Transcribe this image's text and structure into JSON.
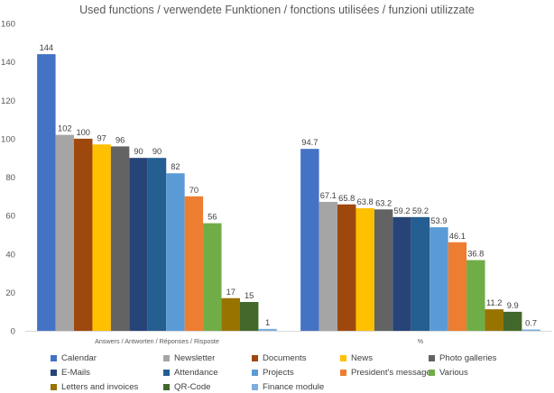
{
  "chart_data": {
    "type": "bar",
    "title": "Used functions / verwendete Funktionen / fonctions utilisées / funzioni utilizzate",
    "xlabel": "",
    "ylabel": "",
    "ylim": [
      0,
      160
    ],
    "yticks": [
      "0",
      "20",
      "40",
      "60",
      "80",
      "100",
      "120",
      "140",
      "160"
    ],
    "grid": false,
    "legend_position": "bottom",
    "data_labels": true,
    "categories": [
      "Answers / Antworten / Réponses / Risposte",
      "%"
    ],
    "series": [
      {
        "name": "Calendar",
        "color": "#4472C4",
        "values": [
          144,
          94.7
        ],
        "labels": [
          "144",
          "94.7"
        ]
      },
      {
        "name": "Newsletter",
        "color": "#A5A5A5",
        "values": [
          102,
          67.1
        ],
        "labels": [
          "102",
          "67.1"
        ]
      },
      {
        "name": "Documents",
        "color": "#9E480E",
        "values": [
          100,
          65.8
        ],
        "labels": [
          "100",
          "65.8"
        ]
      },
      {
        "name": "News",
        "color": "#FFC000",
        "values": [
          97,
          63.8
        ],
        "labels": [
          "97",
          "63.8"
        ]
      },
      {
        "name": "Photo galleries",
        "color": "#636363",
        "values": [
          96,
          63.2
        ],
        "labels": [
          "96",
          "63.2"
        ]
      },
      {
        "name": "E-Mails",
        "color": "#264478",
        "values": [
          90,
          59.2
        ],
        "labels": [
          "90",
          "59.2"
        ]
      },
      {
        "name": "Attendance",
        "color": "#255E91",
        "values": [
          90,
          59.2
        ],
        "labels": [
          "90",
          "59.2"
        ]
      },
      {
        "name": "Projects",
        "color": "#5B9BD5",
        "values": [
          82,
          53.9
        ],
        "labels": [
          "82",
          "53.9"
        ]
      },
      {
        "name": "President's messages",
        "color": "#ED7D31",
        "values": [
          70,
          46.1
        ],
        "labels": [
          "70",
          "46.1"
        ]
      },
      {
        "name": "Various",
        "color": "#70AD47",
        "values": [
          56,
          36.8
        ],
        "labels": [
          "56",
          "36.8"
        ]
      },
      {
        "name": "Letters and invoices",
        "color": "#997300",
        "values": [
          17,
          11.2
        ],
        "labels": [
          "17",
          "11.2"
        ]
      },
      {
        "name": "QR-Code",
        "color": "#43682B",
        "values": [
          15,
          9.9
        ],
        "labels": [
          "15",
          "9.9"
        ]
      },
      {
        "name": "Finance module",
        "color": "#7CAFDD",
        "values": [
          1,
          0.7
        ],
        "labels": [
          "1",
          "0.7"
        ]
      }
    ]
  }
}
